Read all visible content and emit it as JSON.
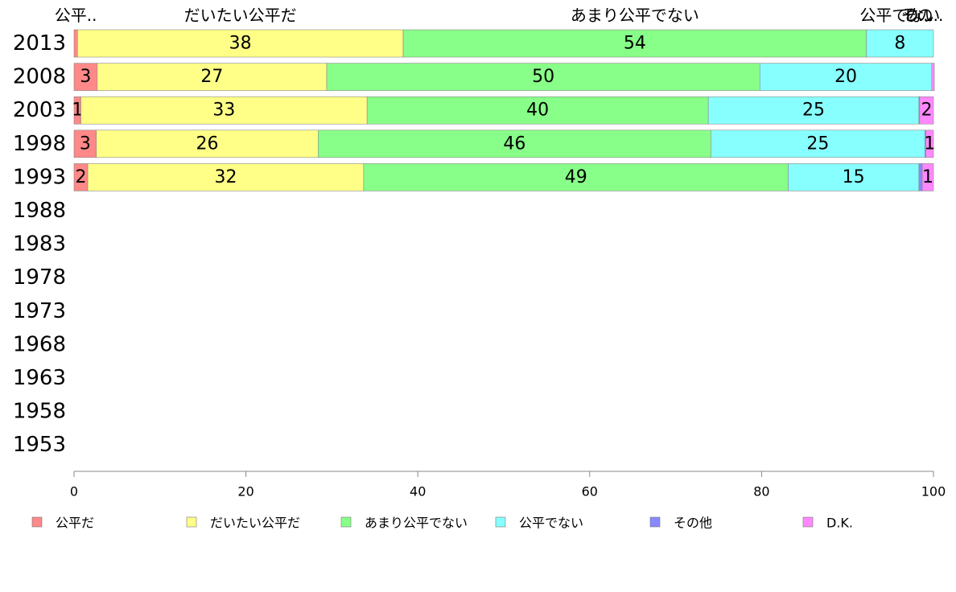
{
  "chart_data": {
    "type": "bar",
    "orientation": "horizontal",
    "stacked": true,
    "title": "",
    "xlabel": "",
    "ylabel": "",
    "xlim": [
      0,
      100
    ],
    "x_ticks": [
      "0",
      "20",
      "40",
      "60",
      "80",
      "100"
    ],
    "categories": [
      "2013",
      "2008",
      "2003",
      "1998",
      "1993",
      "1988",
      "1983",
      "1978",
      "1973",
      "1968",
      "1963",
      "1958",
      "1953"
    ],
    "top_labels": [
      "公平..",
      "だいたい公平だ",
      "あまり公平でない",
      "公平でない",
      "その..",
      "D..."
    ],
    "series": [
      {
        "name": "公平だ",
        "color": "#ff8888",
        "values": [
          0.4,
          2.7,
          0.8,
          2.6,
          1.6,
          null,
          null,
          null,
          null,
          null,
          null,
          null,
          null
        ],
        "labels": [
          "",
          "3",
          "1",
          "3",
          "2",
          "",
          "",
          "",
          "",
          "",
          "",
          "",
          ""
        ]
      },
      {
        "name": "だいたい公平だ",
        "color": "#ffff88",
        "values": [
          37.9,
          26.7,
          33.3,
          25.8,
          32.1,
          null,
          null,
          null,
          null,
          null,
          null,
          null,
          null
        ],
        "labels": [
          "38",
          "27",
          "33",
          "26",
          "32",
          "",
          "",
          "",
          "",
          "",
          "",
          "",
          ""
        ]
      },
      {
        "name": "あまり公平でない",
        "color": "#88ff88",
        "values": [
          53.9,
          50.4,
          39.7,
          45.7,
          49.4,
          null,
          null,
          null,
          null,
          null,
          null,
          null,
          null
        ],
        "labels": [
          "54",
          "50",
          "40",
          "46",
          "49",
          "",
          "",
          "",
          "",
          "",
          "",
          "",
          ""
        ]
      },
      {
        "name": "公平でない",
        "color": "#88ffff",
        "values": [
          7.8,
          20.0,
          24.5,
          24.9,
          15.2,
          null,
          null,
          null,
          null,
          null,
          null,
          null,
          null
        ],
        "labels": [
          "8",
          "20",
          "25",
          "25",
          "15",
          "",
          "",
          "",
          "",
          "",
          "",
          "",
          ""
        ]
      },
      {
        "name": "その他",
        "color": "#8888ff",
        "values": [
          0.0,
          0.0,
          0.1,
          0.1,
          0.4,
          null,
          null,
          null,
          null,
          null,
          null,
          null,
          null
        ],
        "labels": [
          "",
          "",
          "",
          "",
          "",
          "",
          "",
          "",
          "",
          "",
          "",
          "",
          ""
        ]
      },
      {
        "name": "D.K.",
        "color": "#ff88ff",
        "values": [
          0.0,
          0.3,
          1.6,
          0.9,
          1.3,
          null,
          null,
          null,
          null,
          null,
          null,
          null,
          null
        ],
        "labels": [
          "",
          "",
          "2",
          "1",
          "1",
          "",
          "",
          "",
          "",
          "",
          "",
          "",
          ""
        ]
      }
    ],
    "legend_position": "bottom",
    "grid": false
  }
}
